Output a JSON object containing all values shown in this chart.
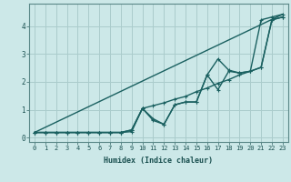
{
  "xlabel": "Humidex (Indice chaleur)",
  "bg_color": "#cce8e8",
  "grid_color": "#aacccc",
  "line_color": "#1a6060",
  "xlim": [
    -0.5,
    23.5
  ],
  "ylim": [
    -0.15,
    4.8
  ],
  "xticks": [
    0,
    1,
    2,
    3,
    4,
    5,
    6,
    7,
    8,
    9,
    10,
    11,
    12,
    13,
    14,
    15,
    16,
    17,
    18,
    19,
    20,
    21,
    22,
    23
  ],
  "yticks": [
    0,
    1,
    2,
    3,
    4
  ],
  "series_no_marker": [
    [
      0,
      0.19
    ],
    [
      23,
      4.42
    ]
  ],
  "series_with_markers": [
    [
      0.19,
      0.19,
      0.19,
      0.19,
      0.19,
      0.19,
      0.19,
      0.19,
      0.19,
      0.22,
      1.05,
      1.15,
      1.25,
      1.38,
      1.48,
      1.65,
      1.78,
      1.95,
      2.08,
      2.25,
      2.38,
      4.22,
      4.32,
      4.42
    ],
    [
      0.19,
      0.19,
      0.19,
      0.19,
      0.19,
      0.19,
      0.19,
      0.19,
      0.19,
      0.28,
      1.05,
      0.68,
      0.48,
      1.18,
      1.28,
      1.28,
      2.25,
      1.72,
      2.38,
      2.32,
      2.38,
      2.52,
      4.22,
      4.32
    ],
    [
      0.19,
      0.19,
      0.19,
      0.19,
      0.19,
      0.19,
      0.19,
      0.19,
      0.19,
      0.28,
      1.05,
      0.62,
      0.48,
      1.18,
      1.28,
      1.28,
      2.25,
      2.82,
      2.42,
      2.32,
      2.38,
      2.52,
      4.22,
      4.32
    ]
  ]
}
